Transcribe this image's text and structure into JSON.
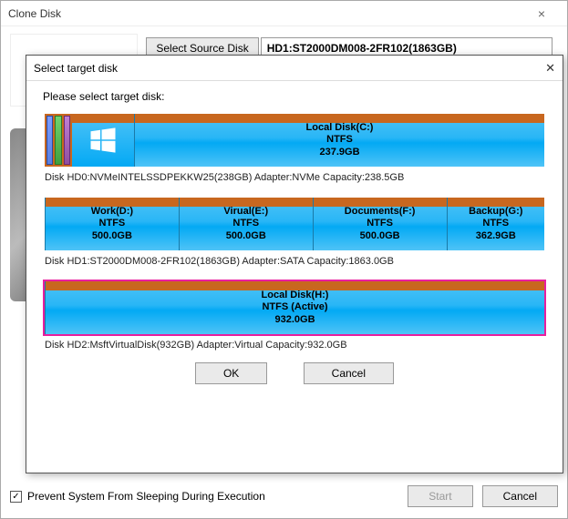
{
  "back": {
    "title": "Clone Disk",
    "select_source_label": "Select Source Disk",
    "source_value": "HD1:ST2000DM008-2FR102(1863GB)",
    "prevent_sleep_label": "Prevent System From Sleeping During Execution",
    "prevent_sleep_checked": true,
    "start_label": "Start",
    "cancel_label": "Cancel"
  },
  "modal": {
    "title": "Select target disk",
    "prompt": "Please select target disk:",
    "ok_label": "OK",
    "cancel_label": "Cancel"
  },
  "disks": [
    {
      "caption": "Disk HD0:NVMeINTELSSDPEKKW25(238GB)  Adapter:NVMe  Capacity:238.5GB",
      "has_stripes": true,
      "has_winlogo": true,
      "selected": false,
      "partitions": [
        {
          "name": "Local Disk(C:)",
          "fs": "NTFS",
          "size": "237.9GB",
          "flex": 1
        }
      ]
    },
    {
      "caption": "Disk HD1:ST2000DM008-2FR102(1863GB)  Adapter:SATA  Capacity:1863.0GB",
      "has_stripes": false,
      "has_winlogo": false,
      "selected": false,
      "partitions": [
        {
          "name": "Work(D:)",
          "fs": "NTFS",
          "size": "500.0GB",
          "flex": 1
        },
        {
          "name": "Virual(E:)",
          "fs": "NTFS",
          "size": "500.0GB",
          "flex": 1
        },
        {
          "name": "Documents(F:)",
          "fs": "NTFS",
          "size": "500.0GB",
          "flex": 1
        },
        {
          "name": "Backup(G:)",
          "fs": "NTFS",
          "size": "362.9GB",
          "flex": 0.73
        }
      ]
    },
    {
      "caption": "Disk HD2:MsftVirtualDisk(932GB)  Adapter:Virtual  Capacity:932.0GB",
      "has_stripes": false,
      "has_winlogo": false,
      "selected": true,
      "partitions": [
        {
          "name": "Local Disk(H:)",
          "fs": "NTFS (Active)",
          "size": "932.0GB",
          "flex": 1
        }
      ]
    }
  ],
  "colors": {
    "partition_top_bar": "#c8671f",
    "partition_gradient_top": "#4fc3f7",
    "partition_gradient_bottom": "#03a9f4",
    "selected_border": "#e91e9e"
  }
}
